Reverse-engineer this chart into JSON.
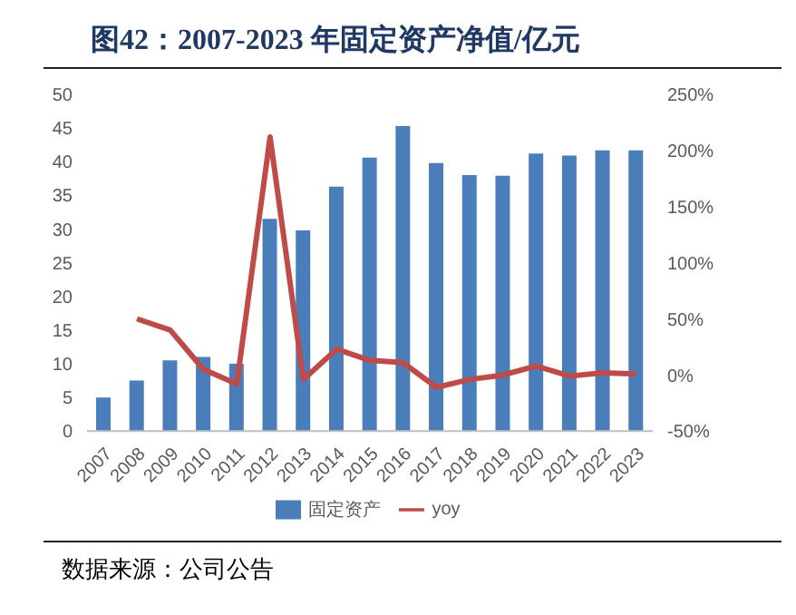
{
  "chart_data": {
    "type": "bar",
    "title": "图42：2007-2023 年固定资产净值/亿元",
    "categories": [
      "2007",
      "2008",
      "2009",
      "2010",
      "2011",
      "2012",
      "2013",
      "2014",
      "2015",
      "2016",
      "2017",
      "2018",
      "2019",
      "2020",
      "2021",
      "2022",
      "2023"
    ],
    "series": [
      {
        "name": "固定资产",
        "color": "#4a7ebb",
        "values": [
          5,
          7.5,
          10.5,
          11,
          10,
          31.5,
          29.8,
          36.3,
          40.6,
          45.3,
          39.8,
          38,
          37.9,
          41.2,
          40.9,
          41.7,
          41.7
        ]
      },
      {
        "name": "yoy",
        "type": "line",
        "axis": "y2",
        "color": "#be4b48",
        "values": [
          null,
          50,
          40,
          5,
          -8,
          212,
          -4,
          23,
          13,
          11,
          -11,
          -4,
          0,
          8,
          -1,
          2,
          1
        ]
      }
    ],
    "ylim": [
      0,
      50
    ],
    "yticks": [
      0,
      5,
      10,
      15,
      20,
      25,
      30,
      35,
      40,
      45,
      50
    ],
    "y2lim": [
      -50,
      250
    ],
    "y2ticks": [
      {
        "value": -50,
        "label": "-50%"
      },
      {
        "value": 0,
        "label": "0%"
      },
      {
        "value": 50,
        "label": "50%"
      },
      {
        "value": 100,
        "label": "100%"
      },
      {
        "value": 150,
        "label": "150%"
      },
      {
        "value": 200,
        "label": "200%"
      },
      {
        "value": 250,
        "label": "250%"
      }
    ],
    "legend": "bottom",
    "grid": false,
    "marker": "none",
    "line_style": "solid",
    "annotations": [
      "数据来源：公司公告"
    ]
  }
}
